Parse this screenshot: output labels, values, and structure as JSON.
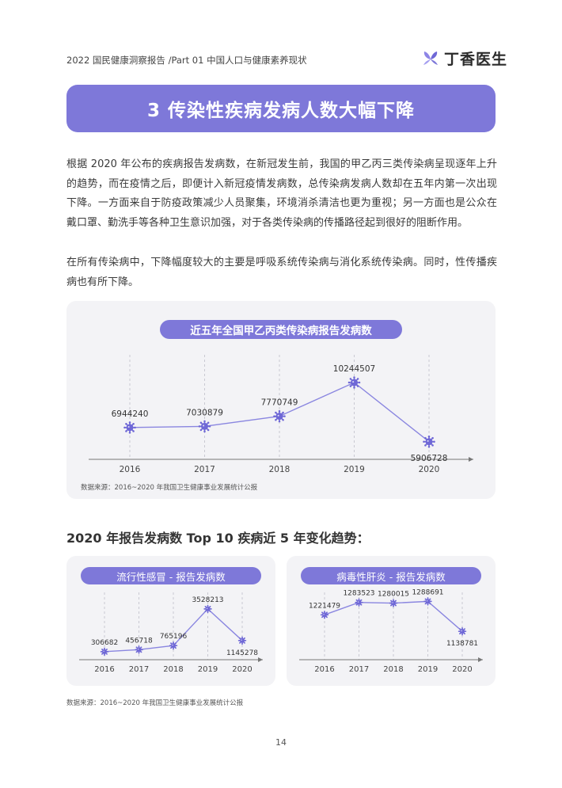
{
  "header": {
    "breadcrumb": "2022 国民健康洞察报告 /Part 01 中国人口与健康素养现状",
    "logo_text": "丁香医生"
  },
  "banner": {
    "title": "3 传染性疾病发病人数大幅下降"
  },
  "paragraphs": [
    "根据 2020 年公布的疾病报告发病数，在新冠发生前，我国的甲乙丙三类传染病呈现逐年上升的趋势，而在疫情之后，即便计入新冠疫情发病数，总传染病发病人数却在五年内第一次出现下降。一方面来自于防疫政策减少人员聚集，环境消杀清洁也更为重视；另一方面也是公众在戴口罩、勤洗手等各种卫生意识加强，对于各类传染病的传播路径起到很好的阻断作用。",
    "在所有传染病中，下降幅度较大的主要是呼吸系统传染病与消化系统传染病。同时，性传播疾病也有所下降。"
  ],
  "main_chart": {
    "pill_title": "近五年全国甲乙丙类传染病报告发病数",
    "source": "数据来源：2016~2020 年我国卫生健康事业发展统计公报"
  },
  "section_title": "2020 年报告发病数 Top 10 疾病近 5 年变化趋势：",
  "small_charts": [
    {
      "pill_title": "流行性感冒 - 报告发病数"
    },
    {
      "pill_title": "病毒性肝炎 - 报告发病数"
    }
  ],
  "bottom_source": "数据来源：2016~2020 年我国卫生健康事业发展统计公报",
  "page_number": "14",
  "colors": {
    "accent": "#7e78d9",
    "card_bg": "#f3f3f6",
    "line": "#8a86e0"
  },
  "chart_data": [
    {
      "type": "line",
      "title": "近五年全国甲乙丙类传染病报告发病数",
      "categories": [
        "2016",
        "2017",
        "2018",
        "2019",
        "2020"
      ],
      "values": [
        6944240,
        7030879,
        7770749,
        10244507,
        5906728
      ],
      "value_labels": [
        "6944240",
        "7030879",
        "7770749",
        "10244507",
        "5906728"
      ],
      "ylim": [
        2000000,
        11000000
      ],
      "grid": "vertical-dashed"
    },
    {
      "type": "line",
      "title": "流行性感冒 - 报告发病数",
      "categories": [
        "2016",
        "2017",
        "2018",
        "2019",
        "2020"
      ],
      "values": [
        306682,
        456718,
        765196,
        3528213,
        1145278
      ],
      "value_labels": [
        "306682",
        "456718",
        "765196",
        "3528213",
        "1145278"
      ],
      "ylim": [
        0,
        3700000
      ],
      "grid": "vertical-dashed"
    },
    {
      "type": "line",
      "title": "病毒性肝炎 - 报告发病数",
      "categories": [
        "2016",
        "2017",
        "2018",
        "2019",
        "2020"
      ],
      "values": [
        1221479,
        1283523,
        1280015,
        1288691,
        1138781
      ],
      "value_labels": [
        "1221479",
        "1283523",
        "1280015",
        "1288691",
        "1138781"
      ],
      "ylim": [
        1080000,
        1310000
      ],
      "grid": "vertical-dashed"
    }
  ]
}
